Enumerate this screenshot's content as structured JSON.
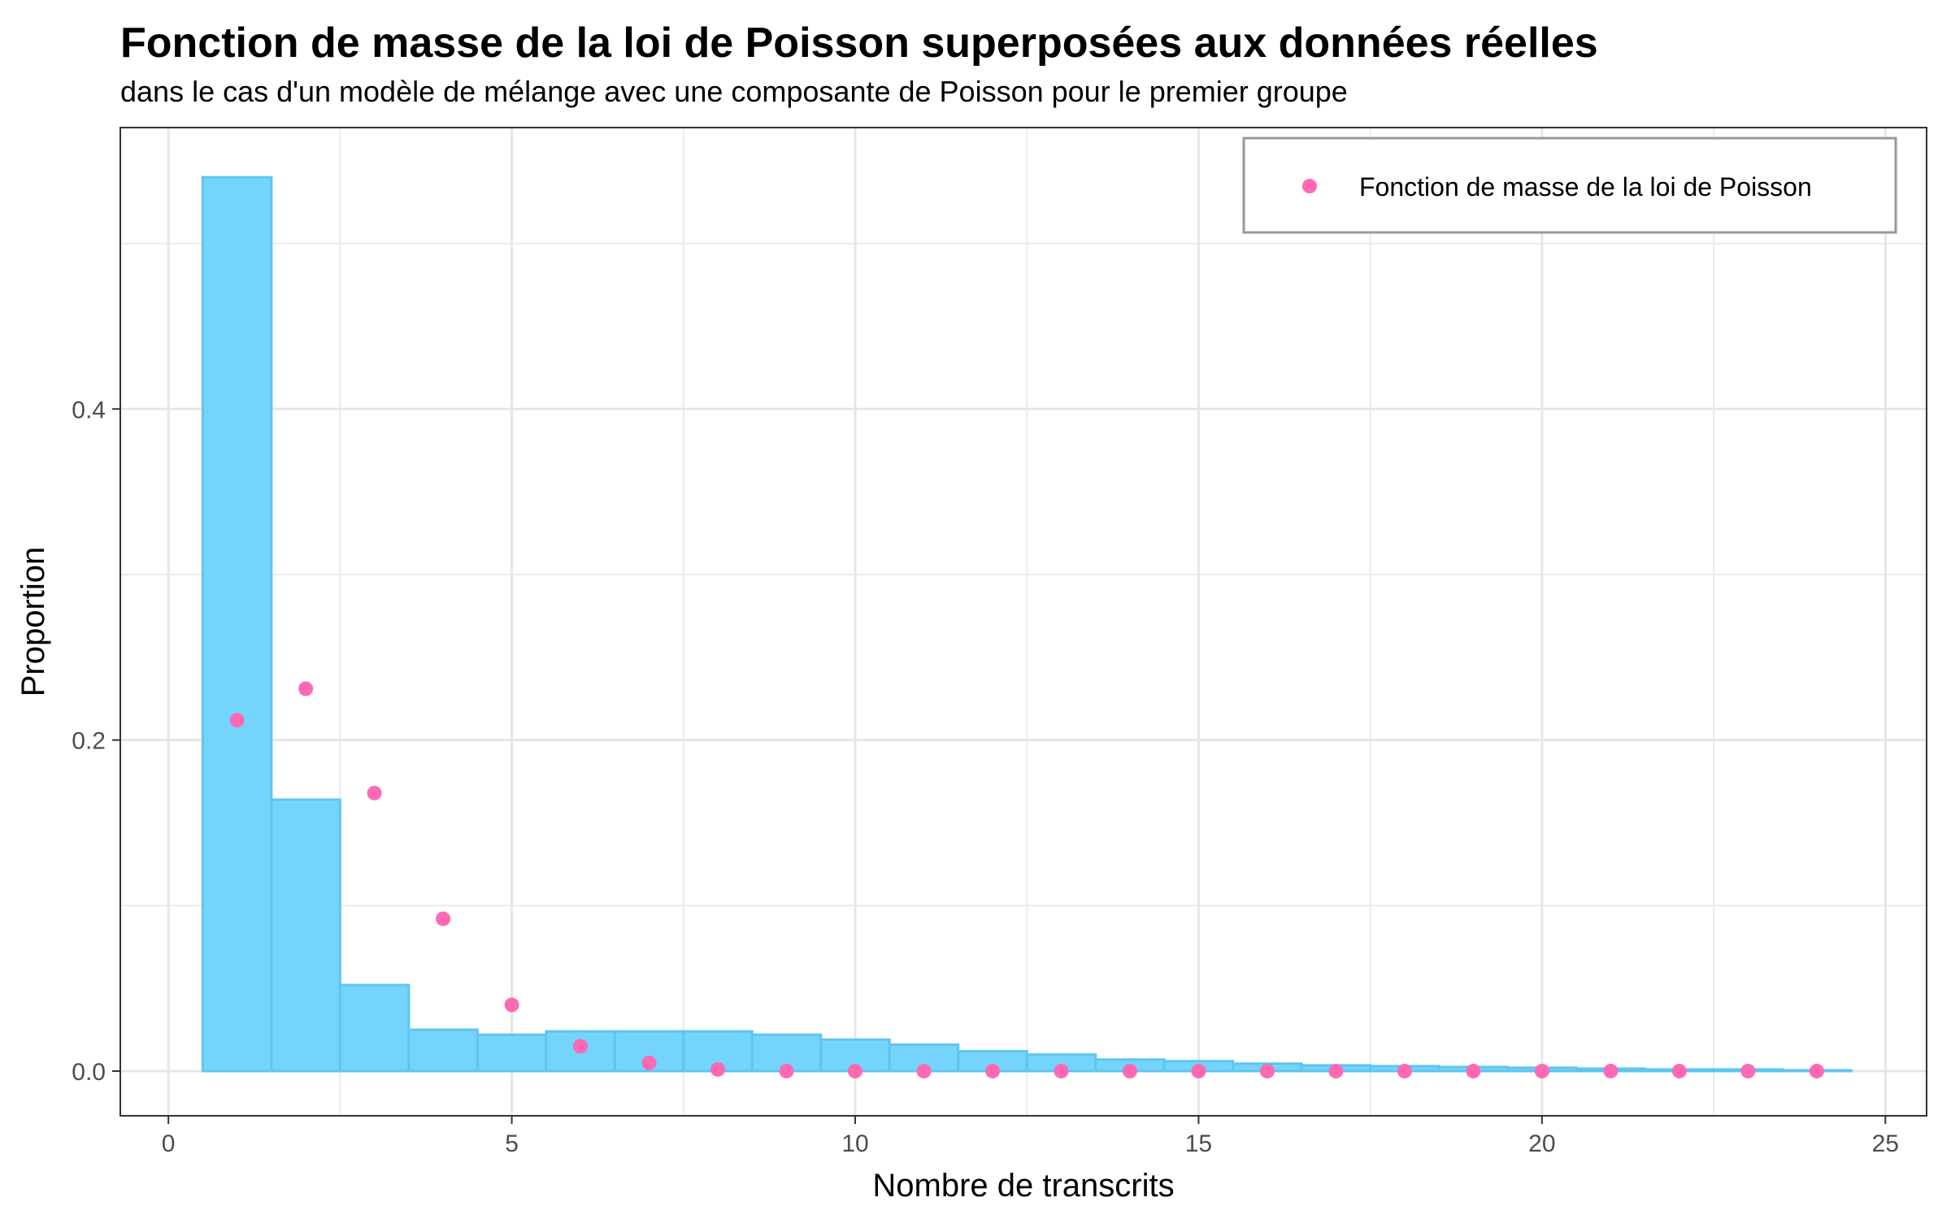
{
  "chart_data": {
    "type": "bar",
    "title": "Fonction de masse de la loi de Poisson superposées aux données réelles",
    "subtitle": "dans le cas d'un modèle de mélange avec une composante de Poisson pour le premier groupe",
    "xlabel": "Nombre de transcrits",
    "ylabel": "Proportion",
    "xlim": [
      -0.7,
      25.6
    ],
    "ylim": [
      -0.027,
      0.57
    ],
    "x_ticks": [
      0,
      5,
      10,
      15,
      20,
      25
    ],
    "x_tick_labels": [
      "0",
      "5",
      "10",
      "15",
      "20",
      "25"
    ],
    "y_ticks": [
      0.0,
      0.2,
      0.4
    ],
    "y_tick_labels": [
      "0.0",
      "0.2",
      "0.4"
    ],
    "grid": true,
    "legend_position": "top-right",
    "histogram": {
      "x": [
        1,
        2,
        3,
        4,
        5,
        6,
        7,
        8,
        9,
        10,
        11,
        12,
        13,
        14,
        15,
        16,
        17,
        18,
        19,
        20,
        21,
        22,
        23,
        24
      ],
      "values": [
        0.54,
        0.164,
        0.052,
        0.025,
        0.022,
        0.024,
        0.024,
        0.024,
        0.022,
        0.019,
        0.016,
        0.012,
        0.01,
        0.007,
        0.006,
        0.0045,
        0.0035,
        0.003,
        0.0025,
        0.002,
        0.0015,
        0.001,
        0.001,
        0.0005
      ],
      "color": "#74d4fc",
      "edge_color": "#5ec6ef"
    },
    "series": [
      {
        "name": "Fonction de masse de la loi de Poisson",
        "type": "scatter",
        "x": [
          1,
          2,
          3,
          4,
          5,
          6,
          7,
          8,
          9,
          10,
          11,
          12,
          13,
          14,
          15,
          16,
          17,
          18,
          19,
          20,
          21,
          22,
          23,
          24
        ],
        "values": [
          0.212,
          0.231,
          0.168,
          0.092,
          0.04,
          0.015,
          0.005,
          0.001,
          0.0,
          0.0,
          0.0,
          0.0,
          0.0,
          0.0,
          0.0,
          0.0,
          0.0,
          0.0,
          0.0,
          0.0,
          0.0,
          0.0,
          0.0,
          0.0
        ],
        "color": "#ff69b4"
      }
    ]
  }
}
